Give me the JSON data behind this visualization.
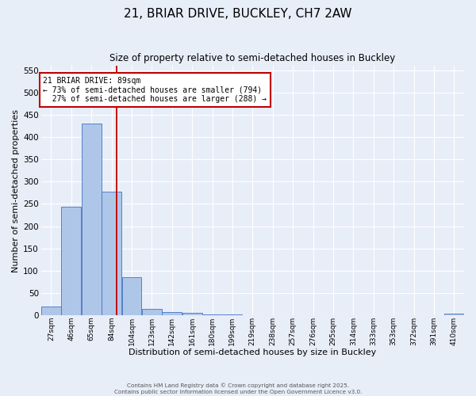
{
  "title": "21, BRIAR DRIVE, BUCKLEY, CH7 2AW",
  "subtitle": "Size of property relative to semi-detached houses in Buckley",
  "xlabel": "Distribution of semi-detached houses by size in Buckley",
  "ylabel": "Number of semi-detached properties",
  "bin_labels": [
    "27sqm",
    "46sqm",
    "65sqm",
    "84sqm",
    "104sqm",
    "123sqm",
    "142sqm",
    "161sqm",
    "180sqm",
    "199sqm",
    "219sqm",
    "238sqm",
    "257sqm",
    "276sqm",
    "295sqm",
    "314sqm",
    "333sqm",
    "353sqm",
    "372sqm",
    "391sqm",
    "410sqm"
  ],
  "bin_edges": [
    18,
    37,
    56,
    75,
    94,
    113,
    132,
    151,
    170,
    189,
    208,
    227,
    246,
    265,
    284,
    303,
    322,
    341,
    360,
    379,
    398,
    417
  ],
  "values": [
    20,
    243,
    430,
    277,
    85,
    15,
    8,
    5,
    2,
    2,
    1,
    0,
    0,
    0,
    1,
    0,
    0,
    0,
    1,
    0,
    3
  ],
  "bar_color": "#aec6e8",
  "bar_edge_color": "#4472c4",
  "property_size": 89,
  "property_label": "21 BRIAR DRIVE: 89sqm",
  "pct_smaller": 73,
  "n_smaller": 794,
  "pct_larger": 27,
  "n_larger": 288,
  "vline_color": "#c00000",
  "ylim": [
    0,
    560
  ],
  "yticks": [
    0,
    50,
    100,
    150,
    200,
    250,
    300,
    350,
    400,
    450,
    500,
    550
  ],
  "background_color": "#e8eef8",
  "grid_color": "#ffffff",
  "footer_line1": "Contains HM Land Registry data © Crown copyright and database right 2025.",
  "footer_line2": "Contains public sector information licensed under the Open Government Licence v3.0."
}
